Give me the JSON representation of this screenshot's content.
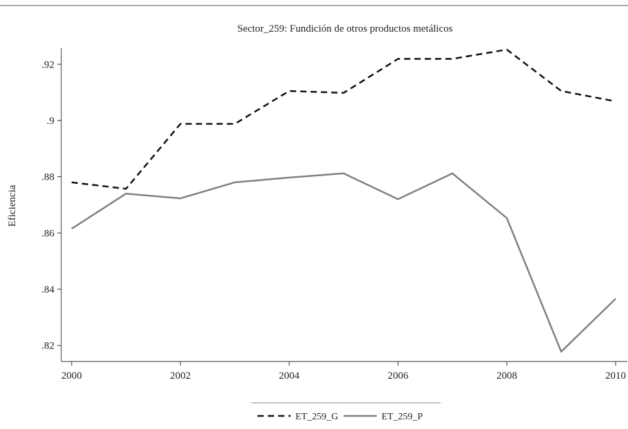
{
  "chart_data": {
    "type": "line",
    "title": "Sector_259: Fundición de otros productos metálicos",
    "xlabel": "",
    "ylabel": "Eficiencia",
    "x": [
      2000,
      2001,
      2002,
      2003,
      2004,
      2005,
      2006,
      2007,
      2008,
      2009,
      2010
    ],
    "xticks": [
      2000,
      2002,
      2004,
      2006,
      2008,
      2010
    ],
    "xtick_labels": [
      "2000",
      "2002",
      "2004",
      "2006",
      "2008",
      "2010"
    ],
    "yticks": [
      0.82,
      0.84,
      0.86,
      0.88,
      0.9,
      0.92
    ],
    "ytick_labels": [
      ".82",
      ".84",
      ".86",
      ".88",
      ".9",
      ".92"
    ],
    "xlim": [
      2000,
      2010
    ],
    "ylim": [
      0.8143,
      0.9257
    ],
    "grid": false,
    "legend_position": "bottom",
    "series": [
      {
        "name": "ET_259_G",
        "style": "dashed",
        "color": "#111111",
        "values": [
          0.878,
          0.8757,
          0.8988,
          0.8988,
          0.9105,
          0.9098,
          0.9219,
          0.9219,
          0.9252,
          0.9105,
          0.9068
        ]
      },
      {
        "name": "ET_259_P",
        "style": "solid",
        "color": "#808080",
        "values": [
          0.8615,
          0.874,
          0.8723,
          0.878,
          0.8797,
          0.8812,
          0.872,
          0.8812,
          0.8653,
          0.8178,
          0.8366
        ]
      }
    ]
  }
}
